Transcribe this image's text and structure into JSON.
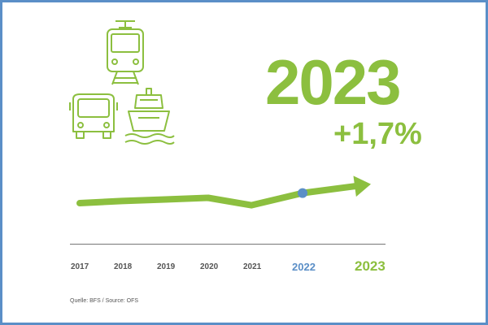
{
  "chart_data": {
    "type": "line",
    "title": "",
    "xlabel": "",
    "ylabel": "",
    "categories": [
      "2017",
      "2018",
      "2019",
      "2020",
      "2021",
      "2022",
      "2023"
    ],
    "series": [
      {
        "values": [
          100.0,
          100.4,
          100.7,
          101.0,
          99.6,
          101.9,
          103.6
        ]
      }
    ],
    "highlight_year": "2023",
    "highlight_change": "+1,7%",
    "reference_year": "2022",
    "colors": {
      "line": "#8cbf3f",
      "marker": "#5b8fc7",
      "frame": "#5b8fc7"
    },
    "source": "Quelle: BFS / Source: OFS"
  },
  "icons": [
    "tram-icon",
    "bus-icon",
    "ship-icon"
  ]
}
